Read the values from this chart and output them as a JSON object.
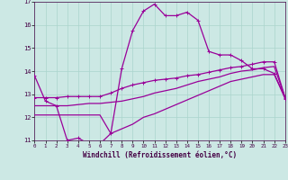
{
  "xlabel": "Windchill (Refroidissement éolien,°C)",
  "background_color": "#cce8e4",
  "grid_color": "#aad4cc",
  "line_color": "#990099",
  "xlim": [
    0,
    23
  ],
  "ylim": [
    11,
    17
  ],
  "yticks": [
    11,
    12,
    13,
    14,
    15,
    16,
    17
  ],
  "xticks": [
    0,
    1,
    2,
    3,
    4,
    5,
    6,
    7,
    8,
    9,
    10,
    11,
    12,
    13,
    14,
    15,
    16,
    17,
    18,
    19,
    20,
    21,
    22,
    23
  ],
  "series1_x": [
    0,
    1,
    2,
    3,
    4,
    5,
    6,
    7,
    8,
    9,
    10,
    11,
    12,
    13,
    14,
    15,
    16,
    17,
    18,
    19,
    20,
    21,
    22,
    23
  ],
  "series1_y": [
    13.8,
    12.7,
    12.5,
    11.0,
    11.1,
    10.85,
    10.85,
    11.3,
    14.1,
    15.75,
    16.6,
    16.9,
    16.4,
    16.4,
    16.55,
    16.2,
    14.85,
    14.7,
    14.7,
    14.45,
    14.1,
    14.1,
    13.9,
    12.8
  ],
  "series2_x": [
    0,
    1,
    2,
    3,
    4,
    5,
    6,
    7,
    8,
    9,
    10,
    11,
    12,
    13,
    14,
    15,
    16,
    17,
    18,
    19,
    20,
    21,
    22,
    23
  ],
  "series2_y": [
    12.85,
    12.85,
    12.85,
    12.9,
    12.9,
    12.9,
    12.9,
    13.05,
    13.25,
    13.4,
    13.5,
    13.6,
    13.65,
    13.7,
    13.8,
    13.85,
    13.95,
    14.05,
    14.15,
    14.2,
    14.3,
    14.4,
    14.4,
    12.85
  ],
  "series3_x": [
    0,
    1,
    2,
    3,
    4,
    5,
    6,
    7,
    8,
    9,
    10,
    11,
    12,
    13,
    14,
    15,
    16,
    17,
    18,
    19,
    20,
    21,
    22,
    23
  ],
  "series3_y": [
    12.5,
    12.5,
    12.5,
    12.5,
    12.55,
    12.6,
    12.6,
    12.65,
    12.7,
    12.8,
    12.9,
    13.05,
    13.15,
    13.25,
    13.4,
    13.55,
    13.65,
    13.75,
    13.9,
    14.0,
    14.05,
    14.15,
    14.2,
    12.85
  ],
  "series4_x": [
    0,
    1,
    2,
    3,
    4,
    5,
    6,
    7,
    8,
    9,
    10,
    11,
    12,
    13,
    14,
    15,
    16,
    17,
    18,
    19,
    20,
    21,
    22,
    23
  ],
  "series4_y": [
    12.1,
    12.1,
    12.1,
    12.1,
    12.1,
    12.1,
    12.1,
    11.3,
    11.5,
    11.7,
    12.0,
    12.15,
    12.35,
    12.55,
    12.75,
    12.95,
    13.15,
    13.35,
    13.55,
    13.65,
    13.75,
    13.85,
    13.85,
    12.85
  ]
}
